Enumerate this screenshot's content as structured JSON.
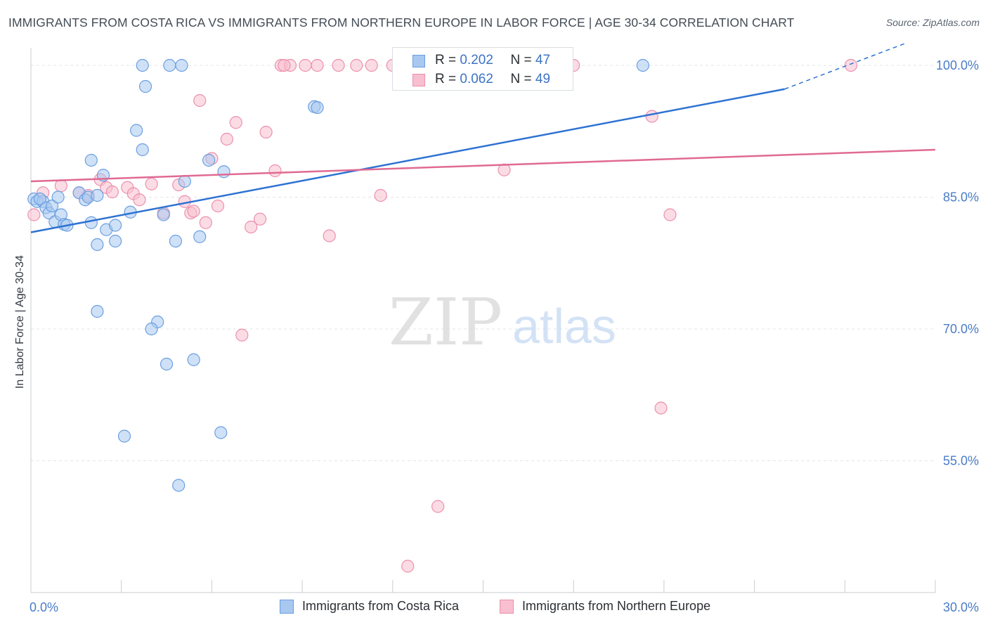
{
  "title": "IMMIGRANTS FROM COSTA RICA VS IMMIGRANTS FROM NORTHERN EUROPE IN LABOR FORCE | AGE 30-34 CORRELATION CHART",
  "source": "Source: ZipAtlas.com",
  "watermark": {
    "zip": "ZIP",
    "atlas": "atlas"
  },
  "legend": {
    "r_label": "R =",
    "n_label": "N =",
    "series": [
      {
        "r": "0.202",
        "n": "47"
      },
      {
        "r": "0.062",
        "n": "49"
      }
    ]
  },
  "bottom_legend": [
    "Immigrants from Costa Rica",
    "Immigrants from Northern Europe"
  ],
  "colors": {
    "blue_fill": "#a8c8f0",
    "blue_stroke": "#6a9ee0",
    "blue_line": "#2d72d2",
    "pink_fill": "#f7bfd0",
    "pink_stroke": "#ec8fac",
    "pink_line": "#e06a93",
    "tick_text": "#4a7cc7",
    "grid": "#e2e5e9",
    "axis": "#c9cdd2"
  },
  "chart_data": {
    "type": "scatter",
    "title": "IMMIGRANTS FROM COSTA RICA VS IMMIGRANTS FROM NORTHERN EUROPE IN LABOR FORCE | AGE 30-34 CORRELATION CHART",
    "xlabel": "",
    "ylabel": "In Labor Force | Age 30-34",
    "xlim": [
      0,
      30
    ],
    "ylim": [
      40,
      102
    ],
    "x_tick_labels": [
      {
        "value": 0,
        "label": "0.0%"
      },
      {
        "value": 30,
        "label": "30.0%"
      }
    ],
    "y_tick_labels": [
      {
        "value": 100,
        "label": "100.0%"
      },
      {
        "value": 85,
        "label": "85.0%"
      },
      {
        "value": 70,
        "label": "70.0%"
      },
      {
        "value": 55,
        "label": "55.0%"
      }
    ],
    "grid": true,
    "series": [
      {
        "name": "Immigrants from Costa Rica",
        "r": 0.202,
        "n": 47,
        "trend": {
          "x": [
            0,
            25
          ],
          "y": [
            81.0,
            97.3
          ],
          "dashed_extension_to": [
            29.0,
            102.5
          ]
        },
        "points": [
          [
            0.1,
            84.8
          ],
          [
            0.2,
            84.5
          ],
          [
            0.4,
            84.5
          ],
          [
            0.5,
            83.8
          ],
          [
            0.6,
            83.2
          ],
          [
            0.7,
            84.0
          ],
          [
            0.8,
            82.2
          ],
          [
            0.9,
            85.0
          ],
          [
            1.0,
            83.0
          ],
          [
            1.1,
            81.9
          ],
          [
            1.2,
            81.8
          ],
          [
            1.6,
            85.5
          ],
          [
            1.8,
            84.7
          ],
          [
            1.9,
            85.0
          ],
          [
            2.0,
            82.1
          ],
          [
            2.2,
            79.6
          ],
          [
            2.0,
            89.2
          ],
          [
            2.4,
            87.5
          ],
          [
            2.5,
            81.3
          ],
          [
            2.8,
            80.0
          ],
          [
            2.8,
            81.8
          ],
          [
            3.3,
            83.3
          ],
          [
            3.7,
            90.4
          ],
          [
            2.2,
            85.2
          ],
          [
            2.2,
            72.0
          ],
          [
            3.1,
            57.8
          ],
          [
            3.7,
            100.0
          ],
          [
            3.8,
            97.6
          ],
          [
            4.2,
            70.8
          ],
          [
            4.8,
            80.0
          ],
          [
            4.4,
            83.0
          ],
          [
            5.1,
            86.8
          ],
          [
            3.5,
            92.6
          ],
          [
            4.6,
            100.0
          ],
          [
            4.0,
            70.0
          ],
          [
            4.5,
            66.0
          ],
          [
            5.0,
            100.0
          ],
          [
            4.9,
            52.2
          ],
          [
            5.4,
            66.5
          ],
          [
            5.6,
            80.5
          ],
          [
            5.9,
            89.2
          ],
          [
            6.3,
            58.2
          ],
          [
            6.4,
            87.9
          ],
          [
            9.4,
            95.3
          ],
          [
            9.5,
            95.2
          ],
          [
            20.3,
            100.0
          ],
          [
            0.3,
            84.8
          ]
        ]
      },
      {
        "name": "Immigrants from Northern Europe",
        "r": 0.062,
        "n": 49,
        "trend": {
          "x": [
            0,
            30
          ],
          "y": [
            86.8,
            90.4
          ]
        },
        "points": [
          [
            0.1,
            83.0
          ],
          [
            0.4,
            85.5
          ],
          [
            1.0,
            86.3
          ],
          [
            1.6,
            85.5
          ],
          [
            1.9,
            85.2
          ],
          [
            2.3,
            87.0
          ],
          [
            2.5,
            86.1
          ],
          [
            2.7,
            85.6
          ],
          [
            3.2,
            86.1
          ],
          [
            3.4,
            85.4
          ],
          [
            3.6,
            84.7
          ],
          [
            4.0,
            86.5
          ],
          [
            4.4,
            83.2
          ],
          [
            4.9,
            86.4
          ],
          [
            5.1,
            84.5
          ],
          [
            5.3,
            83.2
          ],
          [
            5.4,
            83.4
          ],
          [
            5.6,
            96.0
          ],
          [
            5.8,
            82.1
          ],
          [
            6.2,
            84.0
          ],
          [
            6.0,
            89.4
          ],
          [
            6.5,
            91.6
          ],
          [
            6.8,
            93.5
          ],
          [
            7.0,
            69.3
          ],
          [
            7.3,
            81.6
          ],
          [
            7.6,
            82.5
          ],
          [
            7.8,
            92.4
          ],
          [
            8.1,
            88.0
          ],
          [
            8.3,
            100.0
          ],
          [
            8.6,
            100.0
          ],
          [
            9.1,
            100.0
          ],
          [
            9.5,
            100.0
          ],
          [
            9.9,
            80.6
          ],
          [
            10.2,
            100.0
          ],
          [
            10.8,
            100.0
          ],
          [
            11.3,
            100.0
          ],
          [
            11.6,
            85.2
          ],
          [
            12.0,
            100.0
          ],
          [
            13.4,
            100.0
          ],
          [
            13.5,
            49.8
          ],
          [
            12.5,
            43.0
          ],
          [
            15.7,
            88.1
          ],
          [
            16.2,
            100.0
          ],
          [
            18.0,
            100.0
          ],
          [
            20.6,
            94.2
          ],
          [
            20.9,
            61.0
          ],
          [
            21.2,
            83.0
          ],
          [
            27.2,
            100.0
          ],
          [
            8.4,
            100.0
          ]
        ]
      }
    ]
  }
}
